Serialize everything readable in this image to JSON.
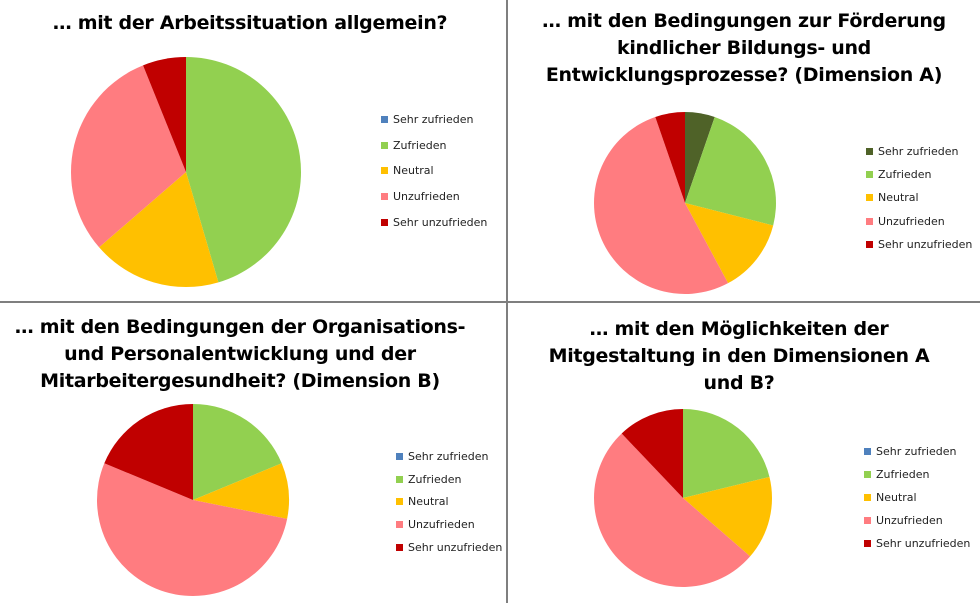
{
  "colors": {
    "Sehr zufrieden": "#4F81BD",
    "Sehr zufrieden (A)": "#4F6228",
    "Zufrieden": "#92D050",
    "Neutral": "#FFC000",
    "Unzufrieden": "#FF7C80",
    "Sehr unzufrieden": "#C00000"
  },
  "chart_data": [
    {
      "type": "pie",
      "title_lines": [
        "… mit der Arbeitssituation allgemein?"
      ],
      "categories": [
        "Sehr zufrieden",
        "Zufrieden",
        "Neutral",
        "Unzufrieden",
        "Sehr unzufrieden"
      ],
      "values": [
        0,
        45.5,
        18.2,
        30.3,
        6.1
      ],
      "slice_colors": [
        "#4F81BD",
        "#92D050",
        "#FFC000",
        "#FF7C80",
        "#C00000"
      ],
      "legend": "right"
    },
    {
      "type": "pie",
      "title_lines": [
        "… mit den Bedingungen zur Förderung",
        "kindlicher Bildungs- und",
        "Entwicklungsprozesse? (Dimension A)"
      ],
      "categories": [
        "Sehr zufrieden",
        "Zufrieden",
        "Neutral",
        "Unzufrieden",
        "Sehr unzufrieden"
      ],
      "values": [
        5.3,
        23.7,
        13.2,
        52.6,
        5.3
      ],
      "slice_colors": [
        "#4F6228",
        "#92D050",
        "#FFC000",
        "#FF7C80",
        "#C00000"
      ],
      "legend": "right"
    },
    {
      "type": "pie",
      "title_lines": [
        "… mit den Bedingungen der Organisations-",
        "und Personalentwicklung und der",
        "Mitarbeitergesundheit? (Dimension B)"
      ],
      "categories": [
        "Sehr zufrieden",
        "Zufrieden",
        "Neutral",
        "Unzufrieden",
        "Sehr unzufrieden"
      ],
      "values": [
        0,
        18.75,
        9.4,
        53.1,
        18.75
      ],
      "slice_colors": [
        "#4F81BD",
        "#92D050",
        "#FFC000",
        "#FF7C80",
        "#C00000"
      ],
      "legend": "right"
    },
    {
      "type": "pie",
      "title_lines": [
        "… mit den Möglichkeiten der",
        "Mitgestaltung in den Dimensionen A",
        "und B?"
      ],
      "categories": [
        "Sehr zufrieden",
        "Zufrieden",
        "Neutral",
        "Unzufrieden",
        "Sehr unzufrieden"
      ],
      "values": [
        0,
        21.2,
        15.2,
        51.5,
        12.1
      ],
      "slice_colors": [
        "#4F81BD",
        "#92D050",
        "#FFC000",
        "#FF7C80",
        "#C00000"
      ],
      "legend": "right"
    }
  ]
}
